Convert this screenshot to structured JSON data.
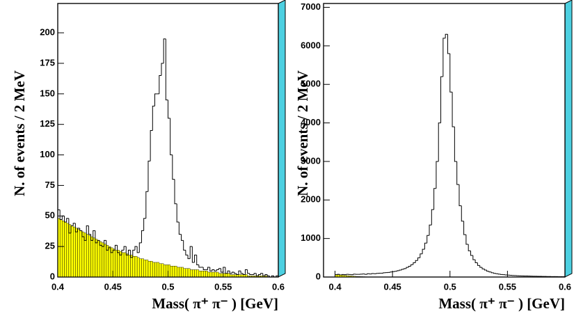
{
  "chart_data": [
    {
      "type": "histogram",
      "x_label": "Mass( π⁺ π⁻ )  [GeV]",
      "y_label": "N. of events / 2 MeV",
      "xlim": [
        0.4,
        0.6
      ],
      "xticks": [
        0.4,
        0.45,
        0.5,
        0.55,
        0.6
      ],
      "ylim": [
        0,
        224
      ],
      "yticks": [
        0,
        25,
        50,
        75,
        100,
        125,
        150,
        175,
        200
      ],
      "frame_color": "#4dd0e1",
      "bins": [
        0.4,
        0.402,
        0.404,
        0.406,
        0.408,
        0.41,
        0.412,
        0.414,
        0.416,
        0.418,
        0.42,
        0.422,
        0.424,
        0.426,
        0.428,
        0.43,
        0.432,
        0.434,
        0.436,
        0.438,
        0.44,
        0.442,
        0.444,
        0.446,
        0.448,
        0.45,
        0.452,
        0.454,
        0.456,
        0.458,
        0.46,
        0.462,
        0.464,
        0.466,
        0.468,
        0.47,
        0.472,
        0.474,
        0.476,
        0.478,
        0.48,
        0.482,
        0.484,
        0.486,
        0.488,
        0.49,
        0.492,
        0.494,
        0.496,
        0.498,
        0.5,
        0.502,
        0.504,
        0.506,
        0.508,
        0.51,
        0.512,
        0.514,
        0.516,
        0.518,
        0.52,
        0.522,
        0.524,
        0.526,
        0.528,
        0.53,
        0.532,
        0.534,
        0.536,
        0.538,
        0.54,
        0.542,
        0.544,
        0.546,
        0.548,
        0.55,
        0.552,
        0.554,
        0.556,
        0.558,
        0.56,
        0.562,
        0.564,
        0.566,
        0.568,
        0.57,
        0.572,
        0.574,
        0.576,
        0.578,
        0.58,
        0.582,
        0.584,
        0.586,
        0.588,
        0.59,
        0.592,
        0.594,
        0.596,
        0.598,
        0.6
      ],
      "series": [
        {
          "color": "#ffff00",
          "fill": true,
          "values": [
            48,
            47,
            46,
            45,
            44,
            43,
            42,
            41,
            40,
            39,
            38,
            37,
            36,
            35,
            34,
            33,
            32,
            31,
            30,
            29,
            28,
            27,
            26,
            25,
            24,
            23,
            22,
            22,
            21,
            20,
            20,
            19,
            18,
            18,
            17,
            17,
            16,
            15,
            15,
            14,
            14,
            13,
            13,
            12,
            12,
            12,
            11,
            11,
            10,
            10,
            10,
            9,
            9,
            9,
            8,
            8,
            8,
            7,
            7,
            7,
            6,
            6,
            6,
            6,
            5,
            5,
            5,
            5,
            4,
            4,
            4,
            4,
            4,
            3,
            3,
            3,
            3,
            3,
            2,
            2,
            2,
            2,
            2,
            2,
            2,
            2,
            1,
            1,
            1,
            1,
            1,
            1,
            1,
            1,
            1,
            0,
            0,
            0,
            0,
            0
          ]
        },
        {
          "color": "#000000",
          "fill": false,
          "values": [
            55,
            47,
            50,
            45,
            48,
            36,
            42,
            44,
            37,
            40,
            38,
            33,
            30,
            42,
            35,
            30,
            38,
            28,
            30,
            26,
            25,
            30,
            22,
            24,
            20,
            22,
            26,
            20,
            18,
            22,
            25,
            18,
            22,
            16,
            22,
            25,
            20,
            28,
            38,
            48,
            70,
            95,
            120,
            140,
            150,
            150,
            165,
            175,
            195,
            145,
            130,
            100,
            80,
            60,
            45,
            35,
            30,
            22,
            18,
            15,
            25,
            12,
            18,
            10,
            8,
            8,
            6,
            6,
            8,
            5,
            6,
            5,
            6,
            7,
            4,
            8,
            3,
            5,
            3,
            4,
            3,
            2,
            5,
            3,
            2,
            6,
            3,
            2,
            2,
            3,
            1,
            2,
            3,
            1,
            2,
            1,
            0,
            1,
            0,
            1
          ]
        }
      ]
    },
    {
      "type": "histogram",
      "x_label": "Mass( π⁺ π⁻ )  [GeV]",
      "y_label": "N. of events / 2 MeV",
      "xlim": [
        0.39,
        0.6
      ],
      "xticks": [
        0.4,
        0.45,
        0.5,
        0.55,
        0.6
      ],
      "ylim": [
        0,
        7100
      ],
      "yticks": [
        0,
        1000,
        2000,
        3000,
        4000,
        5000,
        6000,
        7000
      ],
      "frame_color": "#4dd0e1",
      "bins": [
        0.4,
        0.402,
        0.404,
        0.406,
        0.408,
        0.41,
        0.412,
        0.414,
        0.416,
        0.418,
        0.42,
        0.422,
        0.424,
        0.426,
        0.428,
        0.43,
        0.432,
        0.434,
        0.436,
        0.438,
        0.44,
        0.442,
        0.444,
        0.446,
        0.448,
        0.45,
        0.452,
        0.454,
        0.456,
        0.458,
        0.46,
        0.462,
        0.464,
        0.466,
        0.468,
        0.47,
        0.472,
        0.474,
        0.476,
        0.478,
        0.48,
        0.482,
        0.484,
        0.486,
        0.488,
        0.49,
        0.492,
        0.494,
        0.496,
        0.498,
        0.5,
        0.502,
        0.504,
        0.506,
        0.508,
        0.51,
        0.512,
        0.514,
        0.516,
        0.518,
        0.52,
        0.522,
        0.524,
        0.526,
        0.528,
        0.53,
        0.532,
        0.534,
        0.536,
        0.538,
        0.54,
        0.542,
        0.544,
        0.546,
        0.548,
        0.55,
        0.552,
        0.554,
        0.556,
        0.558,
        0.56,
        0.562,
        0.564,
        0.566,
        0.568,
        0.57,
        0.572,
        0.574,
        0.576,
        0.578,
        0.58,
        0.582,
        0.584,
        0.586,
        0.588,
        0.59,
        0.592,
        0.594,
        0.596,
        0.598,
        0.6
      ],
      "series": [
        {
          "color": "#ffff00",
          "fill": true,
          "values": [
            60,
            55,
            50,
            45,
            40,
            35,
            30,
            25,
            20,
            15,
            12,
            10,
            8,
            6,
            5,
            4,
            3,
            2,
            1,
            1,
            0,
            0,
            0,
            0,
            0,
            0,
            0,
            0,
            0,
            0,
            0,
            0,
            0,
            0,
            0,
            0,
            0,
            0,
            0,
            0,
            0,
            0,
            0,
            0,
            0,
            0,
            0,
            0,
            0,
            0,
            0,
            0,
            0,
            0,
            0,
            0,
            0,
            0,
            0,
            0,
            0,
            0,
            0,
            0,
            0,
            0,
            0,
            0,
            0,
            0,
            0,
            0,
            0,
            0,
            0,
            0,
            0,
            0,
            0,
            0,
            0,
            0,
            0,
            0,
            0,
            0,
            0,
            0,
            0,
            0,
            0,
            0,
            0,
            0,
            0,
            0,
            0,
            0,
            0,
            0
          ]
        },
        {
          "color": "#000000",
          "fill": false,
          "values": [
            60,
            70,
            55,
            65,
            60,
            70,
            65,
            60,
            75,
            70,
            70,
            75,
            80,
            70,
            85,
            80,
            90,
            85,
            95,
            100,
            100,
            110,
            115,
            120,
            130,
            140,
            150,
            165,
            180,
            200,
            220,
            250,
            280,
            320,
            370,
            430,
            500,
            600,
            720,
            880,
            1080,
            1350,
            1750,
            2300,
            3000,
            4000,
            5200,
            6200,
            6300,
            5800,
            4800,
            3900,
            3000,
            2400,
            1850,
            1450,
            1100,
            850,
            680,
            560,
            450,
            370,
            300,
            250,
            210,
            180,
            150,
            130,
            110,
            95,
            85,
            75,
            65,
            60,
            55,
            50,
            45,
            40,
            38,
            35,
            32,
            30,
            28,
            26,
            24,
            22,
            20,
            20,
            18,
            17,
            16,
            15,
            14,
            13,
            12,
            12,
            11,
            10,
            10,
            9
          ]
        }
      ]
    }
  ]
}
